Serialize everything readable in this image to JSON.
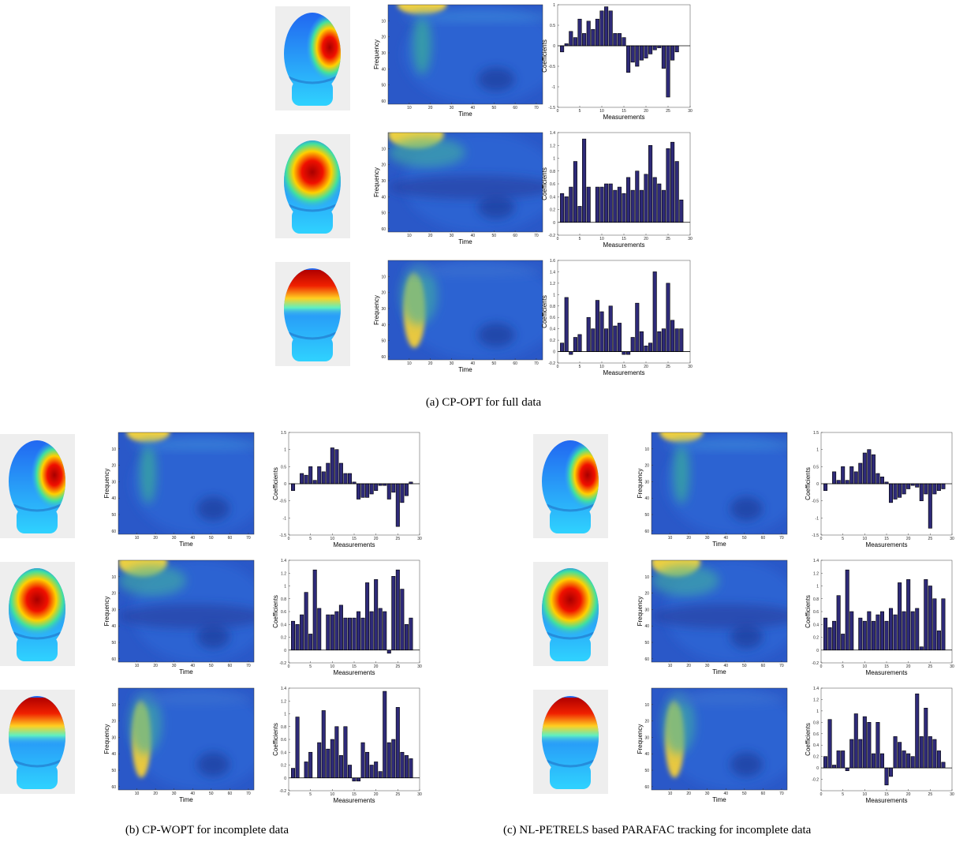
{
  "captions": [
    "(a) CP-OPT for full data",
    "(b) CP-WOPT for incomplete data",
    "(c) NL-PETRELS based PARAFAC tracking for incomplete data"
  ],
  "chart_data": [
    {
      "type": "heatmap",
      "xlabel": "Time",
      "ylabel": "Frequency",
      "xlim": [
        0,
        73
      ],
      "ylim": [
        62,
        0
      ],
      "xticks": [
        10,
        20,
        30,
        40,
        50,
        60,
        70
      ],
      "yticks": [
        10,
        20,
        30,
        40,
        50,
        60
      ]
    },
    {
      "type": "bar",
      "xlabel": "Measurements",
      "ylabel": "Coefficients",
      "color": "#2e2a78",
      "x": [
        1,
        2,
        3,
        4,
        5,
        6,
        7,
        8,
        9,
        10,
        11,
        12,
        13,
        14,
        15,
        16,
        17,
        18,
        19,
        20,
        21,
        22,
        23,
        24,
        25,
        26,
        27,
        28
      ],
      "values": [
        -0.15,
        0.05,
        0.35,
        0.2,
        0.65,
        0.3,
        0.6,
        0.4,
        0.65,
        0.85,
        0.95,
        0.85,
        0.3,
        0.3,
        0.2,
        -0.65,
        -0.4,
        -0.5,
        -0.35,
        -0.3,
        -0.2,
        -0.1,
        -0.05,
        -0.55,
        -1.25,
        -0.35,
        -0.15,
        0.0
      ],
      "xlim": [
        0,
        30
      ],
      "xticks": [
        0,
        5,
        10,
        15,
        20,
        25,
        30
      ],
      "ylim": [
        -1.5,
        1
      ],
      "yticks": [
        -1.5,
        -1,
        -0.5,
        0,
        0.5,
        1
      ]
    },
    {
      "type": "heatmap",
      "xlabel": "Time",
      "ylabel": "Frequency",
      "xlim": [
        0,
        73
      ],
      "ylim": [
        62,
        0
      ],
      "xticks": [
        10,
        20,
        30,
        40,
        50,
        60,
        70
      ],
      "yticks": [
        10,
        20,
        30,
        40,
        50,
        60
      ]
    },
    {
      "type": "bar",
      "xlabel": "Measurements",
      "ylabel": "Coefficients",
      "color": "#2e2a78",
      "x": [
        1,
        2,
        3,
        4,
        5,
        6,
        7,
        8,
        9,
        10,
        11,
        12,
        13,
        14,
        15,
        16,
        17,
        18,
        19,
        20,
        21,
        22,
        23,
        24,
        25,
        26,
        27,
        28
      ],
      "values": [
        0.45,
        0.4,
        0.55,
        0.95,
        0.25,
        1.3,
        0.55,
        0,
        0.55,
        0.55,
        0.6,
        0.6,
        0.5,
        0.55,
        0.45,
        0.7,
        0.5,
        0.8,
        0.5,
        0.75,
        1.2,
        0.7,
        0.6,
        0.5,
        1.15,
        1.25,
        0.95,
        0.35
      ],
      "xlim": [
        0,
        30
      ],
      "xticks": [
        0,
        5,
        10,
        15,
        20,
        25,
        30
      ],
      "ylim": [
        -0.2,
        1.4
      ],
      "yticks": [
        -0.2,
        0,
        0.2,
        0.4,
        0.6,
        0.8,
        1,
        1.2,
        1.4
      ]
    },
    {
      "type": "heatmap",
      "xlabel": "Time",
      "ylabel": "Frequency",
      "xlim": [
        0,
        73
      ],
      "ylim": [
        62,
        0
      ],
      "xticks": [
        10,
        20,
        30,
        40,
        50,
        60,
        70
      ],
      "yticks": [
        10,
        20,
        30,
        40,
        50,
        60
      ]
    },
    {
      "type": "bar",
      "xlabel": "Measurements",
      "ylabel": "Coefficients",
      "color": "#2e2a78",
      "x": [
        1,
        2,
        3,
        4,
        5,
        6,
        7,
        8,
        9,
        10,
        11,
        12,
        13,
        14,
        15,
        16,
        17,
        18,
        19,
        20,
        21,
        22,
        23,
        24,
        25,
        26,
        27,
        28
      ],
      "values": [
        0.15,
        0.95,
        -0.05,
        0.25,
        0.3,
        0,
        0.6,
        0.4,
        0.9,
        0.7,
        0.4,
        0.8,
        0.45,
        0.5,
        -0.05,
        -0.05,
        0.25,
        0.85,
        0.35,
        0.1,
        0.15,
        1.4,
        0.35,
        0.4,
        1.2,
        0.55,
        0.4,
        0.4
      ],
      "xlim": [
        0,
        30
      ],
      "xticks": [
        0,
        5,
        10,
        15,
        20,
        25,
        30
      ],
      "ylim": [
        -0.2,
        1.6
      ],
      "yticks": [
        -0.2,
        0,
        0.2,
        0.4,
        0.6,
        0.8,
        1,
        1.2,
        1.4,
        1.6
      ]
    },
    {
      "type": "heatmap",
      "xlabel": "Time",
      "ylabel": "Frequency",
      "xlim": [
        0,
        73
      ],
      "ylim": [
        62,
        0
      ],
      "xticks": [
        10,
        20,
        30,
        40,
        50,
        60,
        70
      ],
      "yticks": [
        10,
        20,
        30,
        40,
        50,
        60
      ]
    },
    {
      "type": "bar",
      "xlabel": "Measurements",
      "ylabel": "Coefficients",
      "color": "#2e2a78",
      "x": [
        1,
        2,
        3,
        4,
        5,
        6,
        7,
        8,
        9,
        10,
        11,
        12,
        13,
        14,
        15,
        16,
        17,
        18,
        19,
        20,
        21,
        22,
        23,
        24,
        25,
        26,
        27,
        28
      ],
      "values": [
        -0.2,
        0,
        0.3,
        0.25,
        0.5,
        0.1,
        0.5,
        0.35,
        0.6,
        1.05,
        1.0,
        0.6,
        0.3,
        0.3,
        0.05,
        -0.45,
        -0.4,
        -0.4,
        -0.3,
        -0.2,
        -0.05,
        -0.05,
        -0.45,
        -0.25,
        -1.25,
        -0.55,
        -0.35,
        0.05
      ],
      "xlim": [
        0,
        30
      ],
      "xticks": [
        0,
        5,
        10,
        15,
        20,
        25,
        30
      ],
      "ylim": [
        -1.5,
        1.5
      ],
      "yticks": [
        -1.5,
        -1,
        -0.5,
        0,
        0.5,
        1,
        1.5
      ]
    },
    {
      "type": "heatmap",
      "xlabel": "Time",
      "ylabel": "Frequency",
      "xlim": [
        0,
        73
      ],
      "ylim": [
        62,
        0
      ],
      "xticks": [
        10,
        20,
        30,
        40,
        50,
        60,
        70
      ],
      "yticks": [
        10,
        20,
        30,
        40,
        50,
        60
      ]
    },
    {
      "type": "bar",
      "xlabel": "Measurements",
      "ylabel": "Coefficients",
      "color": "#2e2a78",
      "x": [
        1,
        2,
        3,
        4,
        5,
        6,
        7,
        8,
        9,
        10,
        11,
        12,
        13,
        14,
        15,
        16,
        17,
        18,
        19,
        20,
        21,
        22,
        23,
        24,
        25,
        26,
        27,
        28
      ],
      "values": [
        0.45,
        0.4,
        0.55,
        0.9,
        0.25,
        1.25,
        0.65,
        0,
        0.55,
        0.55,
        0.6,
        0.7,
        0.5,
        0.5,
        0.5,
        0.6,
        0.5,
        1.05,
        0.6,
        1.1,
        0.65,
        0.6,
        -0.05,
        1.15,
        1.25,
        0.95,
        0.4,
        0.5
      ],
      "xlim": [
        0,
        30
      ],
      "xticks": [
        0,
        5,
        10,
        15,
        20,
        25,
        30
      ],
      "ylim": [
        -0.2,
        1.4
      ],
      "yticks": [
        -0.2,
        0,
        0.2,
        0.4,
        0.6,
        0.8,
        1,
        1.2,
        1.4
      ]
    },
    {
      "type": "heatmap",
      "xlabel": "Time",
      "ylabel": "Frequency",
      "xlim": [
        0,
        73
      ],
      "ylim": [
        62,
        0
      ],
      "xticks": [
        10,
        20,
        30,
        40,
        50,
        60,
        70
      ],
      "yticks": [
        10,
        20,
        30,
        40,
        50,
        60
      ]
    },
    {
      "type": "bar",
      "xlabel": "Measurements",
      "ylabel": "Coefficients",
      "color": "#2e2a78",
      "x": [
        1,
        2,
        3,
        4,
        5,
        6,
        7,
        8,
        9,
        10,
        11,
        12,
        13,
        14,
        15,
        16,
        17,
        18,
        19,
        20,
        21,
        22,
        23,
        24,
        25,
        26,
        27,
        28
      ],
      "values": [
        0.15,
        0.95,
        0.0,
        0.25,
        0.4,
        0.0,
        0.55,
        1.05,
        0.45,
        0.6,
        0.8,
        0.35,
        0.8,
        0.2,
        -0.05,
        -0.05,
        0.55,
        0.4,
        0.2,
        0.25,
        0.1,
        1.35,
        0.55,
        0.6,
        1.1,
        0.4,
        0.35,
        0.3
      ],
      "xlim": [
        0,
        30
      ],
      "xticks": [
        0,
        5,
        10,
        15,
        20,
        25,
        30
      ],
      "ylim": [
        -0.2,
        1.4
      ],
      "yticks": [
        -0.2,
        0,
        0.2,
        0.4,
        0.6,
        0.8,
        1,
        1.2,
        1.4
      ]
    },
    {
      "type": "heatmap",
      "xlabel": "Time",
      "ylabel": "Frequency",
      "xlim": [
        0,
        73
      ],
      "ylim": [
        62,
        0
      ],
      "xticks": [
        10,
        20,
        30,
        40,
        50,
        60,
        70
      ],
      "yticks": [
        10,
        20,
        30,
        40,
        50,
        60
      ]
    },
    {
      "type": "bar",
      "xlabel": "Measurements",
      "ylabel": "Coefficients",
      "color": "#2e2a78",
      "x": [
        1,
        2,
        3,
        4,
        5,
        6,
        7,
        8,
        9,
        10,
        11,
        12,
        13,
        14,
        15,
        16,
        17,
        18,
        19,
        20,
        21,
        22,
        23,
        24,
        25,
        26,
        27,
        28
      ],
      "values": [
        -0.2,
        0,
        0.35,
        0.1,
        0.5,
        0.1,
        0.5,
        0.35,
        0.6,
        0.9,
        1.0,
        0.85,
        0.3,
        0.2,
        0.05,
        -0.55,
        -0.45,
        -0.4,
        -0.3,
        -0.15,
        -0.05,
        -0.1,
        -0.5,
        -0.3,
        -1.3,
        -0.3,
        -0.2,
        -0.15
      ],
      "xlim": [
        0,
        30
      ],
      "xticks": [
        0,
        5,
        10,
        15,
        20,
        25,
        30
      ],
      "ylim": [
        -1.5,
        1.5
      ],
      "yticks": [
        -1.5,
        -1,
        -0.5,
        0,
        0.5,
        1,
        1.5
      ]
    },
    {
      "type": "heatmap",
      "xlabel": "Time",
      "ylabel": "Frequency",
      "xlim": [
        0,
        73
      ],
      "ylim": [
        62,
        0
      ],
      "xticks": [
        10,
        20,
        30,
        40,
        50,
        60,
        70
      ],
      "yticks": [
        10,
        20,
        30,
        40,
        50,
        60
      ]
    },
    {
      "type": "bar",
      "xlabel": "Measurements",
      "ylabel": "Coefficients",
      "color": "#2e2a78",
      "x": [
        1,
        2,
        3,
        4,
        5,
        6,
        7,
        8,
        9,
        10,
        11,
        12,
        13,
        14,
        15,
        16,
        17,
        18,
        19,
        20,
        21,
        22,
        23,
        24,
        25,
        26,
        27,
        28
      ],
      "values": [
        0.5,
        0.35,
        0.45,
        0.85,
        0.25,
        1.25,
        0.6,
        0,
        0.5,
        0.45,
        0.6,
        0.45,
        0.55,
        0.6,
        0.45,
        0.65,
        0.55,
        1.05,
        0.6,
        1.1,
        0.6,
        0.65,
        0.05,
        1.1,
        1.0,
        0.8,
        0.3,
        0.8
      ],
      "xlim": [
        0,
        30
      ],
      "xticks": [
        0,
        5,
        10,
        15,
        20,
        25,
        30
      ],
      "ylim": [
        -0.2,
        1.4
      ],
      "yticks": [
        -0.2,
        0,
        0.2,
        0.4,
        0.6,
        0.8,
        1,
        1.2,
        1.4
      ]
    },
    {
      "type": "heatmap",
      "xlabel": "Time",
      "ylabel": "Frequency",
      "xlim": [
        0,
        73
      ],
      "ylim": [
        62,
        0
      ],
      "xticks": [
        10,
        20,
        30,
        40,
        50,
        60,
        70
      ],
      "yticks": [
        10,
        20,
        30,
        40,
        50,
        60
      ]
    },
    {
      "type": "bar",
      "xlabel": "Measurements",
      "ylabel": "Coefficients",
      "color": "#2e2a78",
      "x": [
        1,
        2,
        3,
        4,
        5,
        6,
        7,
        8,
        9,
        10,
        11,
        12,
        13,
        14,
        15,
        16,
        17,
        18,
        19,
        20,
        21,
        22,
        23,
        24,
        25,
        26,
        27,
        28
      ],
      "values": [
        0.2,
        0.85,
        0.05,
        0.3,
        0.3,
        -0.05,
        0.5,
        0.95,
        0.5,
        0.9,
        0.8,
        0.25,
        0.8,
        0.25,
        -0.3,
        -0.15,
        0.55,
        0.45,
        0.3,
        0.25,
        0.2,
        1.3,
        0.55,
        1.05,
        0.55,
        0.5,
        0.3,
        0.1
      ],
      "xlim": [
        0,
        30
      ],
      "xticks": [
        0,
        5,
        10,
        15,
        20,
        25,
        30
      ],
      "ylim": [
        -0.4,
        1.4
      ],
      "yticks": [
        -0.2,
        0,
        0.2,
        0.4,
        0.6,
        0.8,
        1,
        1.2,
        1.4
      ]
    }
  ]
}
